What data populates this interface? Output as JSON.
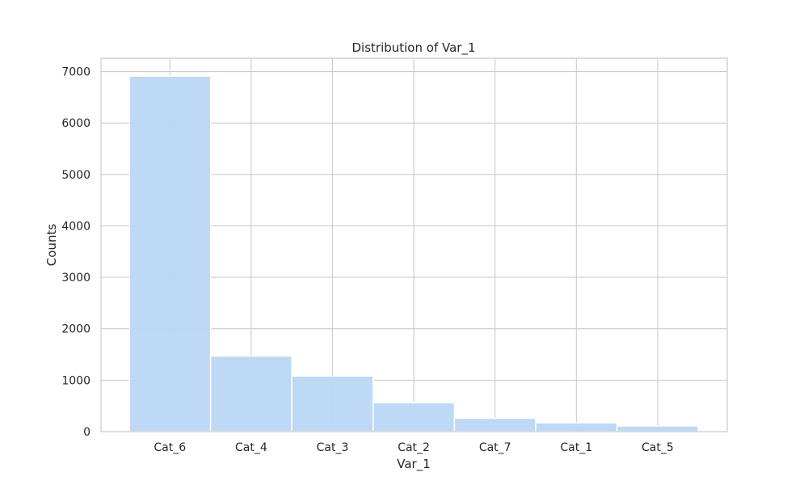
{
  "chart_data": {
    "type": "bar",
    "title": "Distribution of Var_1",
    "xlabel": "Var_1",
    "ylabel": "Counts",
    "categories": [
      "Cat_6",
      "Cat_4",
      "Cat_3",
      "Cat_2",
      "Cat_7",
      "Cat_1",
      "Cat_5"
    ],
    "values": [
      6910,
      1470,
      1080,
      560,
      260,
      170,
      110
    ],
    "ylim": [
      0,
      7260
    ],
    "yticks": [
      0,
      1000,
      2000,
      3000,
      4000,
      5000,
      6000,
      7000
    ],
    "grid": true,
    "legend": "none",
    "colors": {
      "bar_fill": "#b9d7f4",
      "bar_edge": "#ffffff",
      "grid": "#cccccc",
      "frame": "#cccccc",
      "background": "#ffffff"
    }
  }
}
